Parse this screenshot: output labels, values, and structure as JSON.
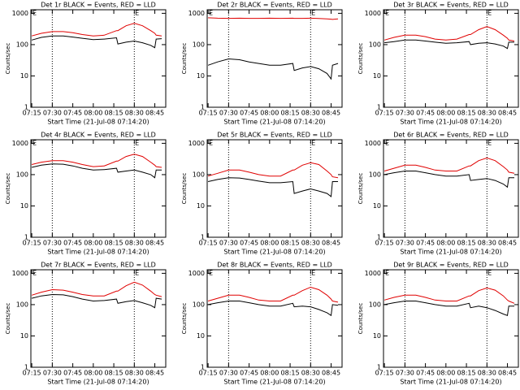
{
  "chart_data": [
    {
      "type": "line",
      "title": "Det 1r BLACK = Events, RED = LLD",
      "ylabel": "Counts/sec",
      "xlabel": "Start Time (21-Jul-08 07:14:20)",
      "log_y": true,
      "xlim": [
        "07:14:20",
        "08:53"
      ],
      "ylim": [
        1,
        1300
      ],
      "yticks": [
        1,
        10,
        100,
        1000
      ],
      "xticks": [
        "07:15",
        "07:30",
        "07:45",
        "08:00",
        "08:15",
        "08:30",
        "08:45"
      ],
      "vlines": [
        "07:30",
        "08:30"
      ],
      "flags": [
        {
          "x": "07:17",
          "label": "E"
        },
        {
          "x": "08:32",
          "label": "E"
        }
      ],
      "x": [
        "07:15",
        "07:22",
        "07:30",
        "07:38",
        "07:45",
        "07:52",
        "08:00",
        "08:08",
        "08:17",
        "08:18",
        "08:24",
        "08:30",
        "08:36",
        "08:42",
        "08:45",
        "08:46",
        "08:50"
      ],
      "series": [
        {
          "color": "#000000",
          "values": [
            140,
            170,
            190,
            190,
            175,
            160,
            145,
            150,
            165,
            105,
            120,
            130,
            115,
            95,
            80,
            150,
            155
          ]
        },
        {
          "color": "#e00000",
          "values": [
            190,
            230,
            260,
            260,
            240,
            210,
            190,
            200,
            280,
            280,
            400,
            480,
            400,
            280,
            230,
            200,
            190
          ]
        }
      ]
    },
    {
      "type": "line",
      "title": "Det 2r BLACK = Events, RED = LLD",
      "ylabel": "Counts/sec",
      "xlabel": "Start Time (21-Jul-08 07:14:20)",
      "log_y": true,
      "xlim": [
        "07:14:20",
        "08:53"
      ],
      "ylim": [
        1,
        1300
      ],
      "yticks": [
        1,
        10,
        100,
        1000
      ],
      "xticks": [
        "07:15",
        "07:30",
        "07:45",
        "08:00",
        "08:15",
        "08:30",
        "08:45"
      ],
      "vlines": [
        "07:30",
        "08:30"
      ],
      "flags": [
        {
          "x": "07:17",
          "label": "E"
        },
        {
          "x": "08:32",
          "label": "E"
        }
      ],
      "x": [
        "07:15",
        "07:22",
        "07:30",
        "07:38",
        "07:45",
        "07:52",
        "08:00",
        "08:08",
        "08:17",
        "08:18",
        "08:24",
        "08:30",
        "08:36",
        "08:42",
        "08:45",
        "08:46",
        "08:50"
      ],
      "series": [
        {
          "color": "#000000",
          "values": [
            22,
            28,
            35,
            33,
            28,
            25,
            22,
            22,
            25,
            15,
            18,
            20,
            17,
            12,
            8,
            22,
            25
          ]
        },
        {
          "color": "#e00000",
          "values": [
            720,
            700,
            690,
            700,
            690,
            690,
            700,
            690,
            700,
            690,
            690,
            700,
            680,
            660,
            650,
            640,
            660
          ]
        }
      ]
    },
    {
      "type": "line",
      "title": "Det 3r BLACK = Events, RED = LLD",
      "ylabel": "Counts/sec",
      "xlabel": "Start Time (21-Jul-08 07:14:20)",
      "log_y": true,
      "xlim": [
        "07:14:20",
        "08:53"
      ],
      "ylim": [
        1,
        1300
      ],
      "yticks": [
        1,
        10,
        100,
        1000
      ],
      "xticks": [
        "07:15",
        "07:30",
        "07:45",
        "08:00",
        "08:15",
        "08:30",
        "08:45"
      ],
      "vlines": [
        "07:30",
        "08:30"
      ],
      "flags": [
        {
          "x": "07:17",
          "label": "E"
        },
        {
          "x": "08:32",
          "label": "E"
        }
      ],
      "x": [
        "07:15",
        "07:22",
        "07:30",
        "07:38",
        "07:45",
        "07:52",
        "08:00",
        "08:08",
        "08:17",
        "08:18",
        "08:24",
        "08:30",
        "08:36",
        "08:42",
        "08:45",
        "08:46",
        "08:50"
      ],
      "series": [
        {
          "color": "#000000",
          "values": [
            115,
            125,
            140,
            140,
            130,
            120,
            110,
            115,
            125,
            100,
            110,
            115,
            105,
            90,
            75,
            120,
            120
          ]
        },
        {
          "color": "#e00000",
          "values": [
            140,
            170,
            200,
            200,
            180,
            150,
            140,
            150,
            210,
            210,
            300,
            380,
            300,
            200,
            160,
            140,
            130
          ]
        }
      ]
    },
    {
      "type": "line",
      "title": "Det 4r BLACK = Events, RED = LLD",
      "ylabel": "Counts/sec",
      "xlabel": "Start Time (21-Jul-08 07:14:20)",
      "log_y": true,
      "xlim": [
        "07:14:20",
        "08:53"
      ],
      "ylim": [
        1,
        1300
      ],
      "yticks": [
        1,
        10,
        100,
        1000
      ],
      "xticks": [
        "07:15",
        "07:30",
        "07:45",
        "08:00",
        "08:15",
        "08:30",
        "08:45"
      ],
      "vlines": [
        "07:30",
        "08:30"
      ],
      "flags": [
        {
          "x": "07:17",
          "label": "E"
        },
        {
          "x": "08:32",
          "label": "E"
        }
      ],
      "x": [
        "07:15",
        "07:22",
        "07:30",
        "07:38",
        "07:45",
        "07:52",
        "08:00",
        "08:08",
        "08:17",
        "08:18",
        "08:24",
        "08:30",
        "08:36",
        "08:42",
        "08:45",
        "08:46",
        "08:50"
      ],
      "series": [
        {
          "color": "#000000",
          "values": [
            170,
            200,
            220,
            215,
            190,
            160,
            140,
            145,
            160,
            120,
            130,
            140,
            120,
            100,
            80,
            140,
            140
          ]
        },
        {
          "color": "#e00000",
          "values": [
            210,
            250,
            280,
            280,
            250,
            210,
            180,
            190,
            270,
            270,
            380,
            450,
            380,
            250,
            200,
            180,
            170
          ]
        }
      ]
    },
    {
      "type": "line",
      "title": "Det 5r BLACK = Events, RED = LLD",
      "ylabel": "Counts/sec",
      "xlabel": "Start Time (21-Jul-08 07:14:20)",
      "log_y": true,
      "xlim": [
        "07:14:20",
        "08:53"
      ],
      "ylim": [
        1,
        1300
      ],
      "yticks": [
        1,
        10,
        100,
        1000
      ],
      "xticks": [
        "07:15",
        "07:30",
        "07:45",
        "08:00",
        "08:15",
        "08:30",
        "08:45"
      ],
      "vlines": [
        "07:30",
        "08:30"
      ],
      "flags": [
        {
          "x": "07:17",
          "label": "E"
        },
        {
          "x": "08:32",
          "label": "E"
        }
      ],
      "x": [
        "07:15",
        "07:22",
        "07:30",
        "07:38",
        "07:45",
        "07:52",
        "08:00",
        "08:08",
        "08:17",
        "08:18",
        "08:24",
        "08:30",
        "08:36",
        "08:42",
        "08:45",
        "08:46",
        "08:50"
      ],
      "series": [
        {
          "color": "#000000",
          "values": [
            60,
            70,
            80,
            78,
            70,
            62,
            55,
            55,
            60,
            25,
            30,
            35,
            30,
            25,
            20,
            60,
            60
          ]
        },
        {
          "color": "#e00000",
          "values": [
            90,
            110,
            140,
            140,
            120,
            100,
            90,
            90,
            140,
            140,
            200,
            240,
            210,
            130,
            100,
            85,
            80
          ]
        }
      ]
    },
    {
      "type": "line",
      "title": "Det 6r BLACK = Events, RED = LLD",
      "ylabel": "Counts/sec",
      "xlabel": "Start Time (21-Jul-08 07:14:20)",
      "log_y": true,
      "xlim": [
        "07:14:20",
        "08:53"
      ],
      "ylim": [
        1,
        1300
      ],
      "yticks": [
        1,
        10,
        100,
        1000
      ],
      "xticks": [
        "07:15",
        "07:30",
        "07:45",
        "08:00",
        "08:15",
        "08:30",
        "08:45"
      ],
      "vlines": [
        "07:30",
        "08:30"
      ],
      "flags": [
        {
          "x": "07:17",
          "label": "E"
        },
        {
          "x": "08:32",
          "label": "E"
        }
      ],
      "x": [
        "07:15",
        "07:22",
        "07:30",
        "07:38",
        "07:45",
        "07:52",
        "08:00",
        "08:08",
        "08:17",
        "08:18",
        "08:24",
        "08:30",
        "08:36",
        "08:42",
        "08:45",
        "08:46",
        "08:50"
      ],
      "series": [
        {
          "color": "#000000",
          "values": [
            100,
            115,
            130,
            130,
            115,
            100,
            90,
            90,
            100,
            65,
            70,
            75,
            65,
            50,
            40,
            80,
            80
          ]
        },
        {
          "color": "#e00000",
          "values": [
            130,
            160,
            200,
            200,
            170,
            140,
            130,
            130,
            190,
            190,
            280,
            340,
            280,
            180,
            140,
            120,
            110
          ]
        }
      ]
    },
    {
      "type": "line",
      "title": "Det 7r BLACK = Events, RED = LLD",
      "ylabel": "Counts/sec",
      "xlabel": "Start Time (21-Jul-08 07:14:20)",
      "log_y": true,
      "xlim": [
        "07:14:20",
        "08:53"
      ],
      "ylim": [
        1,
        1300
      ],
      "yticks": [
        1,
        10,
        100,
        1000
      ],
      "xticks": [
        "07:15",
        "07:30",
        "07:45",
        "08:00",
        "08:15",
        "08:30",
        "08:45"
      ],
      "vlines": [
        "07:30",
        "08:30"
      ],
      "flags": [
        {
          "x": "07:17",
          "label": "E"
        },
        {
          "x": "08:32",
          "label": "E"
        }
      ],
      "x": [
        "07:15",
        "07:22",
        "07:30",
        "07:38",
        "07:45",
        "07:52",
        "08:00",
        "08:08",
        "08:17",
        "08:18",
        "08:24",
        "08:30",
        "08:36",
        "08:42",
        "08:45",
        "08:46",
        "08:50"
      ],
      "series": [
        {
          "color": "#000000",
          "values": [
            160,
            190,
            210,
            205,
            180,
            150,
            130,
            135,
            150,
            110,
            125,
            135,
            115,
            95,
            80,
            160,
            150
          ]
        },
        {
          "color": "#e00000",
          "values": [
            200,
            250,
            300,
            290,
            250,
            210,
            190,
            190,
            270,
            270,
            400,
            520,
            420,
            270,
            210,
            200,
            180
          ]
        }
      ]
    },
    {
      "type": "line",
      "title": "Det 8r BLACK = Events, RED = LLD",
      "ylabel": "Counts/sec",
      "xlabel": "Start Time (21-Jul-08 07:14:20)",
      "log_y": true,
      "xlim": [
        "07:14:20",
        "08:53"
      ],
      "ylim": [
        1,
        1300
      ],
      "yticks": [
        1,
        10,
        100,
        1000
      ],
      "xticks": [
        "07:15",
        "07:30",
        "07:45",
        "08:00",
        "08:15",
        "08:30",
        "08:45"
      ],
      "vlines": [
        "07:30",
        "08:30"
      ],
      "flags": [
        {
          "x": "07:17",
          "label": "E"
        },
        {
          "x": "08:32",
          "label": "E"
        }
      ],
      "x": [
        "07:15",
        "07:22",
        "07:30",
        "07:38",
        "07:45",
        "07:52",
        "08:00",
        "08:08",
        "08:17",
        "08:18",
        "08:24",
        "08:30",
        "08:36",
        "08:42",
        "08:45",
        "08:46",
        "08:50"
      ],
      "series": [
        {
          "color": "#000000",
          "values": [
            100,
            115,
            130,
            130,
            115,
            100,
            90,
            90,
            110,
            85,
            90,
            85,
            70,
            55,
            45,
            100,
            95
          ]
        },
        {
          "color": "#e00000",
          "values": [
            130,
            160,
            200,
            200,
            170,
            140,
            130,
            130,
            200,
            200,
            280,
            360,
            300,
            200,
            150,
            130,
            120
          ]
        }
      ]
    },
    {
      "type": "line",
      "title": "Det 9r BLACK = Events, RED = LLD",
      "ylabel": "Counts/sec",
      "xlabel": "Start Time (21-Jul-08 07:14:20)",
      "log_y": true,
      "xlim": [
        "07:14:20",
        "08:53"
      ],
      "ylim": [
        1,
        1300
      ],
      "yticks": [
        1,
        10,
        100,
        1000
      ],
      "xticks": [
        "07:15",
        "07:30",
        "07:45",
        "08:00",
        "08:15",
        "08:30",
        "08:45"
      ],
      "vlines": [
        "07:30",
        "08:30"
      ],
      "flags": [
        {
          "x": "07:17",
          "label": "E"
        },
        {
          "x": "08:32",
          "label": "E"
        }
      ],
      "x": [
        "07:15",
        "07:22",
        "07:30",
        "07:38",
        "07:45",
        "07:52",
        "08:00",
        "08:08",
        "08:17",
        "08:18",
        "08:24",
        "08:30",
        "08:36",
        "08:42",
        "08:45",
        "08:46",
        "08:50"
      ],
      "series": [
        {
          "color": "#000000",
          "values": [
            100,
            115,
            130,
            130,
            115,
            100,
            90,
            90,
            110,
            80,
            90,
            80,
            65,
            50,
            45,
            90,
            90
          ]
        },
        {
          "color": "#e00000",
          "values": [
            140,
            170,
            200,
            200,
            170,
            140,
            130,
            130,
            190,
            190,
            280,
            340,
            290,
            190,
            140,
            130,
            110
          ]
        }
      ]
    }
  ]
}
